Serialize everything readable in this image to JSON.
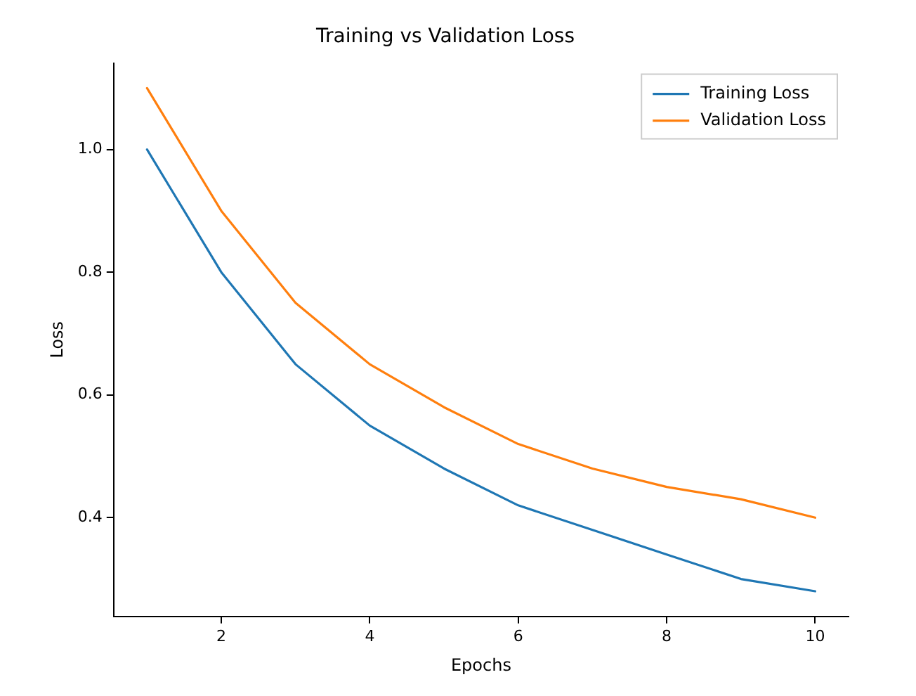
{
  "chart_data": {
    "type": "line",
    "title": "Training vs Validation Loss",
    "xlabel": "Epochs",
    "ylabel": "Loss",
    "x": [
      1,
      2,
      3,
      4,
      5,
      6,
      7,
      8,
      9,
      10
    ],
    "series": [
      {
        "name": "Training Loss",
        "color": "#1f77b4",
        "values": [
          1.0,
          0.8,
          0.65,
          0.55,
          0.48,
          0.42,
          0.38,
          0.34,
          0.3,
          0.28
        ]
      },
      {
        "name": "Validation Loss",
        "color": "#ff7f0e",
        "values": [
          1.1,
          0.9,
          0.75,
          0.65,
          0.58,
          0.52,
          0.48,
          0.45,
          0.43,
          0.4
        ]
      }
    ],
    "xlim": [
      0.55,
      10.45
    ],
    "xticks": [
      2,
      4,
      6,
      8,
      10
    ],
    "ylim": [
      0.239,
      1.141
    ],
    "yticks": [
      {
        "value": 0.4,
        "label": "0.4"
      },
      {
        "value": 0.6,
        "label": "0.6"
      },
      {
        "value": 0.8,
        "label": "0.8"
      },
      {
        "value": 1.0,
        "label": "1.0"
      }
    ],
    "legend": "top right",
    "grid": false,
    "marker": "none",
    "line_style": "solid"
  }
}
